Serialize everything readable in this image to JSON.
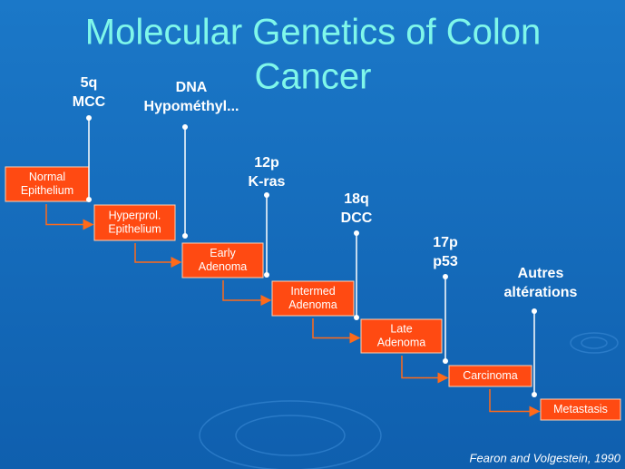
{
  "title": {
    "lines": [
      "Molecular Genetics of Colon",
      "Cancer"
    ]
  },
  "stages": [
    {
      "lines": [
        "Normal",
        "Epithelium"
      ]
    },
    {
      "lines": [
        "Hyperprol.",
        "Epithelium"
      ]
    },
    {
      "lines": [
        "Early",
        "Adenoma"
      ]
    },
    {
      "lines": [
        "Intermed",
        "Adenoma"
      ]
    },
    {
      "lines": [
        "Late",
        "Adenoma"
      ]
    },
    {
      "lines": [
        "Carcinoma"
      ]
    },
    {
      "lines": [
        "Metastasis"
      ]
    }
  ],
  "markers": [
    {
      "lines": [
        "5q",
        "MCC"
      ]
    },
    {
      "lines": [
        "DNA",
        "Hypométhyl..."
      ]
    },
    {
      "lines": [
        "12p",
        "K-ras"
      ]
    },
    {
      "lines": [
        "18q",
        "DCC"
      ]
    },
    {
      "lines": [
        "17p",
        "p53"
      ]
    },
    {
      "lines": [
        "Autres",
        "altérations"
      ]
    }
  ],
  "citation": "Fearon and Volgestein, 1990"
}
